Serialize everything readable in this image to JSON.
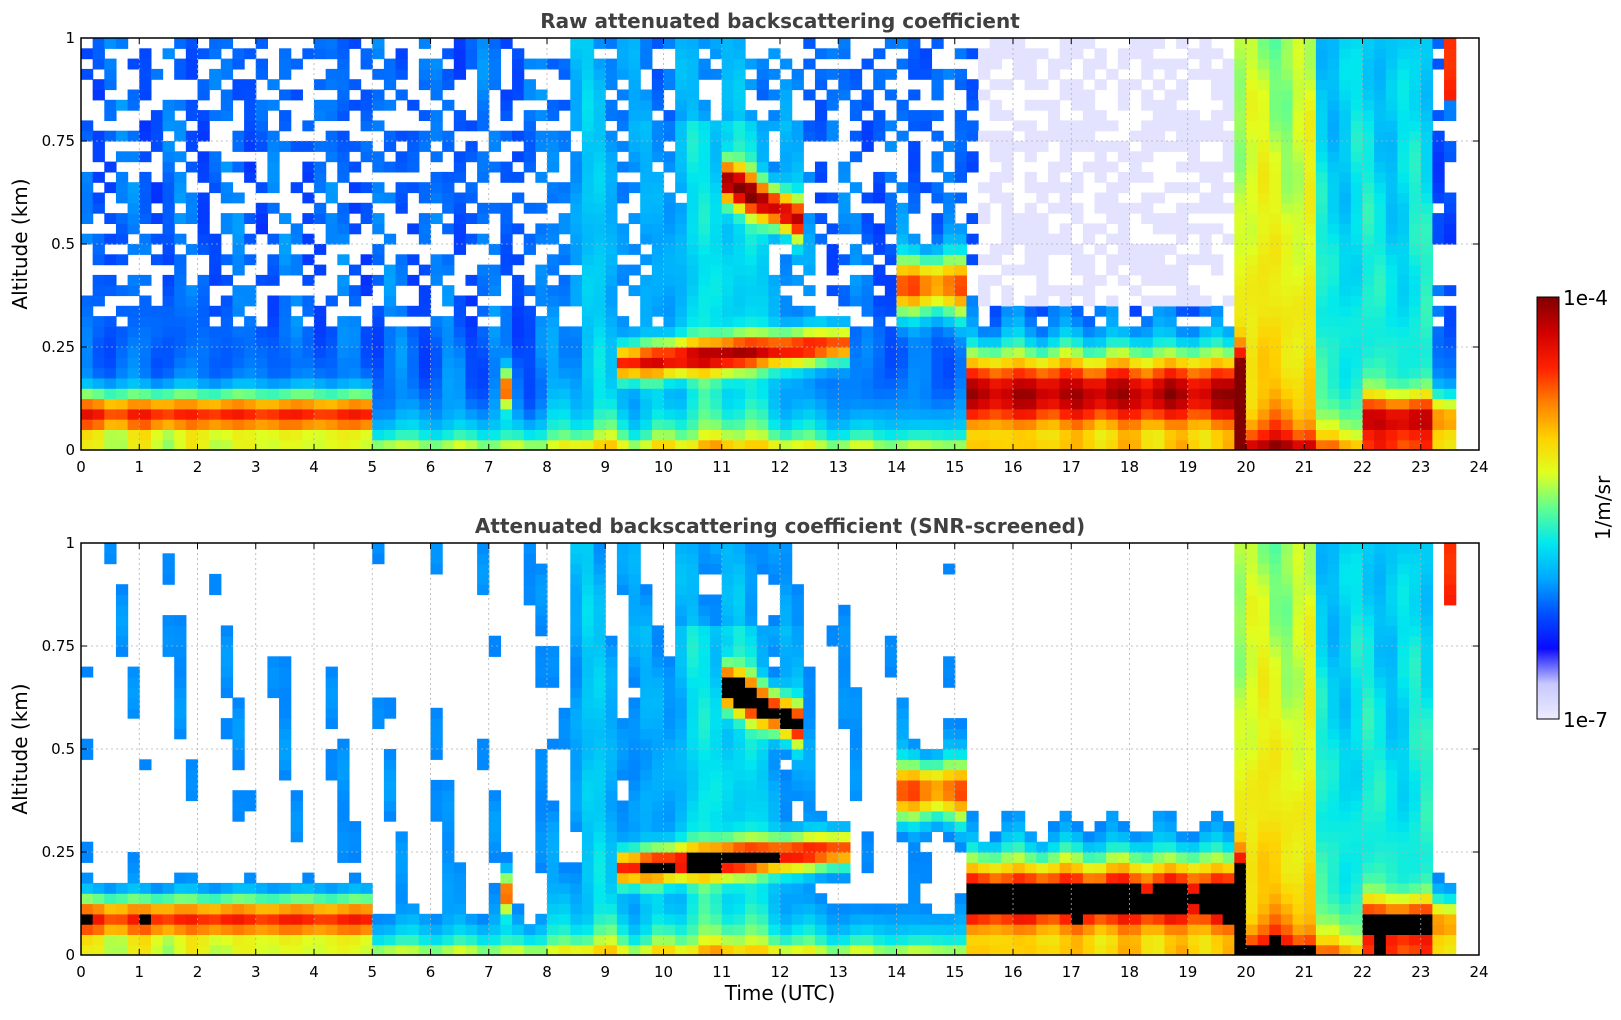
{
  "colormap": [
    "#ececff",
    "#c8c8ff",
    "#0a0aff",
    "#0050ff",
    "#00a8ff",
    "#00e8ee",
    "#60ff90",
    "#e0ff20",
    "#ffd000",
    "#ff8000",
    "#ff2000",
    "#d00000",
    "#800000"
  ],
  "chart_data": [
    {
      "type": "heatmap",
      "title": "Raw attenuated backscattering coefficient",
      "xlabel": "",
      "ylabel": "Altitude (km)",
      "xlim": [
        0,
        24
      ],
      "ylim": [
        0,
        1
      ],
      "xticks": [
        "0",
        "1",
        "2",
        "3",
        "4",
        "5",
        "6",
        "7",
        "8",
        "9",
        "10",
        "11",
        "12",
        "13",
        "14",
        "15",
        "16",
        "17",
        "18",
        "19",
        "20",
        "21",
        "22",
        "23",
        "24"
      ],
      "yticks": [
        "0",
        "0.25",
        "0.5",
        "0.75",
        "1"
      ],
      "grid": true,
      "screened": false
    },
    {
      "type": "heatmap",
      "title": "Attenuated backscattering coefficient (SNR-screened)",
      "xlabel": "Time (UTC)",
      "ylabel": "Altitude (km)",
      "xlim": [
        0,
        24
      ],
      "ylim": [
        0,
        1
      ],
      "xticks": [
        "0",
        "1",
        "2",
        "3",
        "4",
        "5",
        "6",
        "7",
        "8",
        "9",
        "10",
        "11",
        "12",
        "13",
        "14",
        "15",
        "16",
        "17",
        "18",
        "19",
        "20",
        "21",
        "22",
        "23",
        "24"
      ],
      "yticks": [
        "0",
        "0.25",
        "0.5",
        "0.75",
        "1"
      ],
      "grid": true,
      "screened": true
    }
  ],
  "colorbar": {
    "label": "1/m/sr",
    "max_label": "1e-4",
    "min_label": "1e-7",
    "scale": "log",
    "range": [
      1e-07,
      0.0001
    ]
  }
}
